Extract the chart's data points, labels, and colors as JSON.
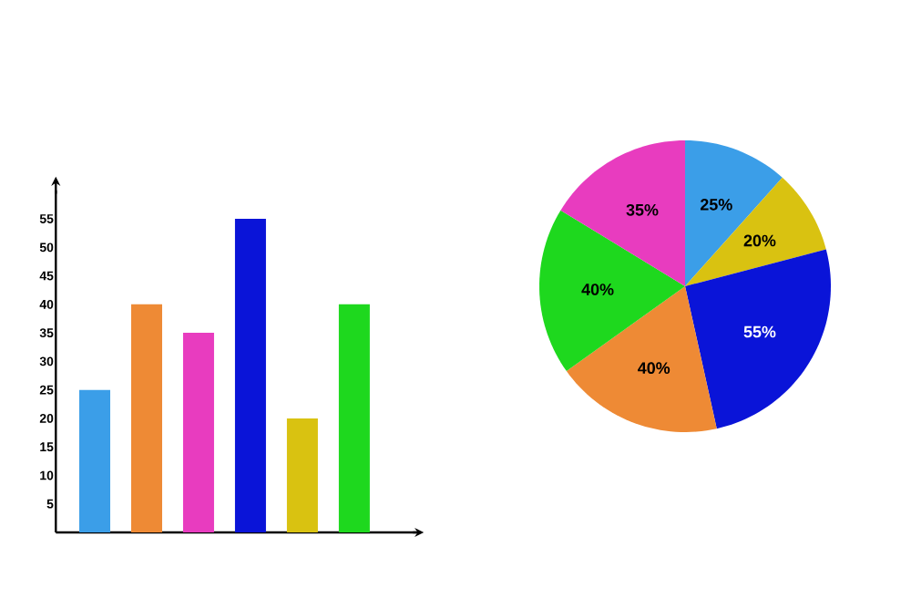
{
  "chart_data": [
    {
      "type": "bar",
      "categories": [
        null,
        null,
        null,
        null,
        null,
        null
      ],
      "values": [
        25,
        40,
        35,
        55,
        20,
        40
      ],
      "colors": [
        "#3b9ee8",
        "#ee8a35",
        "#e83cbf",
        "#0a14d8",
        "#d9c211",
        "#1ed81e"
      ],
      "ylim": [
        0,
        60
      ],
      "yticks": [
        5,
        10,
        15,
        20,
        25,
        30,
        35,
        40,
        45,
        50,
        55
      ],
      "tick_labels": "y"
    },
    {
      "type": "pie",
      "categories": [
        null,
        null,
        null,
        null,
        null,
        null
      ],
      "values": [
        25,
        20,
        55,
        40,
        40,
        35
      ],
      "colors": [
        "#3b9ee8",
        "#d9c211",
        "#0a14d8",
        "#ee8a35",
        "#1ed81e",
        "#e83cbf"
      ],
      "value_labels": [
        "25%",
        "20%",
        "55%",
        "40%",
        "40%",
        "35%"
      ]
    }
  ]
}
